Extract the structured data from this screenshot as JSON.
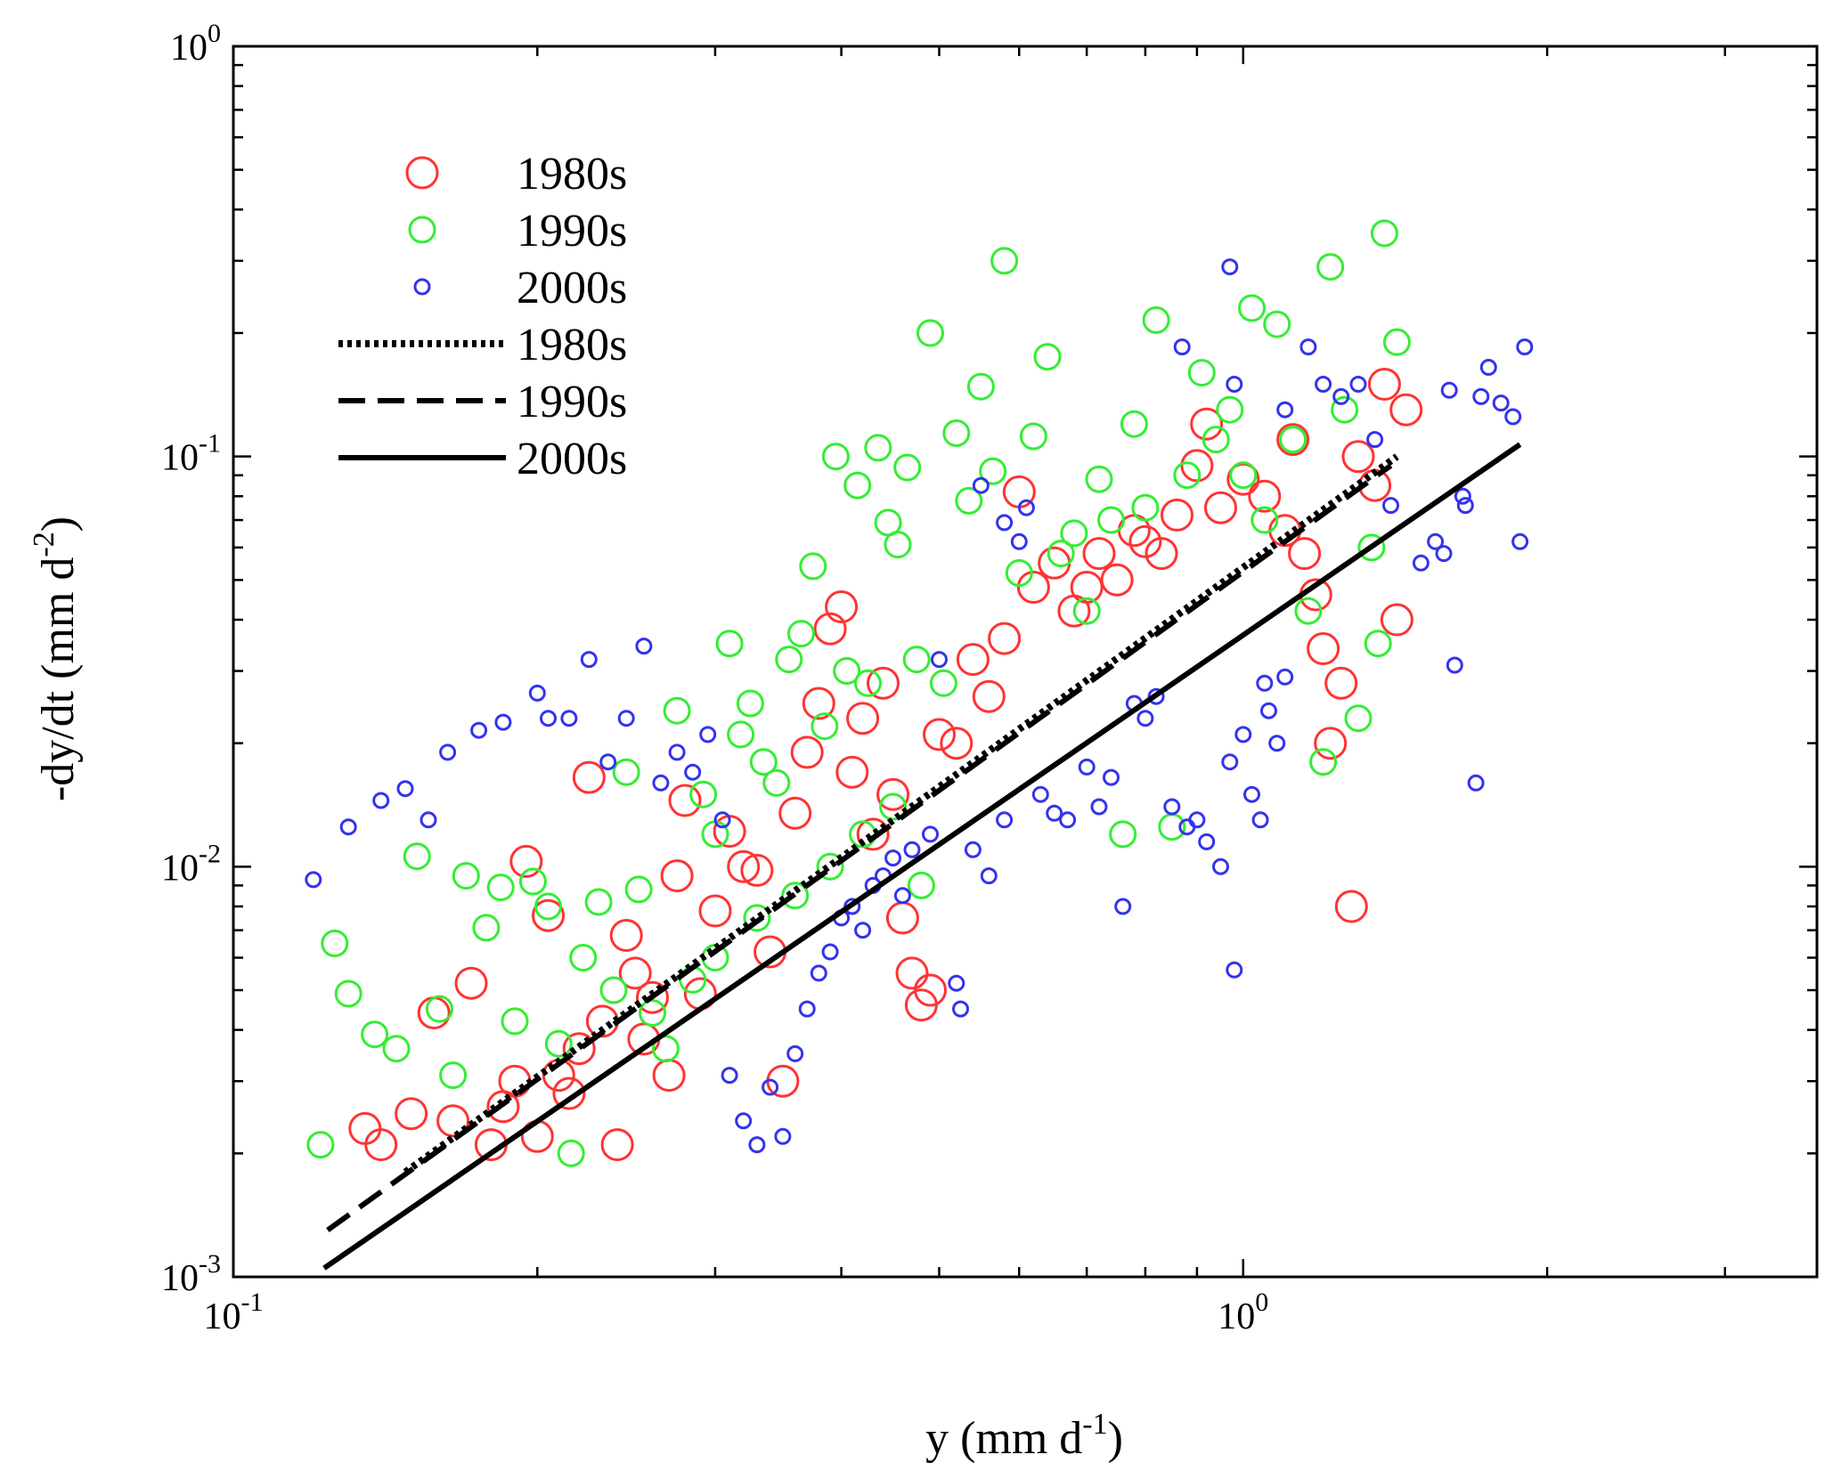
{
  "chart_data": {
    "type": "scatter",
    "title": "",
    "xlabel": "y (mm d",
    "xlabel_sup": "-1",
    "xlabel_end": ")",
    "ylabel": "-dy/dt (mm d",
    "ylabel_sup": "-2",
    "ylabel_end": ")",
    "xscale": "log",
    "yscale": "log",
    "xlim": [
      0.1,
      3.7
    ],
    "ylim": [
      0.001,
      1
    ],
    "grid": false,
    "legend_position": "top-left",
    "x_ticks": [
      {
        "base": "10",
        "exp": "-1",
        "value": 0.1
      },
      {
        "base": "10",
        "exp": "0",
        "value": 1
      }
    ],
    "y_ticks": [
      {
        "base": "10",
        "exp": "-3",
        "value": 0.001
      },
      {
        "base": "10",
        "exp": "-2",
        "value": 0.01
      },
      {
        "base": "10",
        "exp": "-1",
        "value": 0.1
      },
      {
        "base": "10",
        "exp": "0",
        "value": 1
      }
    ],
    "series": [
      {
        "name": "1980s",
        "kind": "scatter",
        "marker": "open-circle",
        "marker_size": "large",
        "color": "#ff3333",
        "points": [
          [
            0.135,
            0.0023
          ],
          [
            0.14,
            0.0021
          ],
          [
            0.15,
            0.0025
          ],
          [
            0.158,
            0.0044
          ],
          [
            0.165,
            0.0024
          ],
          [
            0.172,
            0.0052
          ],
          [
            0.18,
            0.0021
          ],
          [
            0.185,
            0.0026
          ],
          [
            0.19,
            0.003
          ],
          [
            0.195,
            0.0103
          ],
          [
            0.2,
            0.0022
          ],
          [
            0.205,
            0.0076
          ],
          [
            0.21,
            0.0031
          ],
          [
            0.215,
            0.0028
          ],
          [
            0.22,
            0.0036
          ],
          [
            0.225,
            0.0165
          ],
          [
            0.232,
            0.0042
          ],
          [
            0.24,
            0.0021
          ],
          [
            0.245,
            0.0068
          ],
          [
            0.25,
            0.0055
          ],
          [
            0.255,
            0.0038
          ],
          [
            0.26,
            0.0048
          ],
          [
            0.27,
            0.0031
          ],
          [
            0.275,
            0.0095
          ],
          [
            0.28,
            0.0145
          ],
          [
            0.29,
            0.0049
          ],
          [
            0.3,
            0.0078
          ],
          [
            0.31,
            0.0122
          ],
          [
            0.32,
            0.01
          ],
          [
            0.33,
            0.0098
          ],
          [
            0.34,
            0.0062
          ],
          [
            0.35,
            0.003
          ],
          [
            0.36,
            0.0135
          ],
          [
            0.37,
            0.019
          ],
          [
            0.38,
            0.025
          ],
          [
            0.39,
            0.038
          ],
          [
            0.4,
            0.043
          ],
          [
            0.41,
            0.017
          ],
          [
            0.42,
            0.023
          ],
          [
            0.43,
            0.012
          ],
          [
            0.44,
            0.028
          ],
          [
            0.45,
            0.015
          ],
          [
            0.46,
            0.0075
          ],
          [
            0.47,
            0.0055
          ],
          [
            0.48,
            0.0046
          ],
          [
            0.49,
            0.005
          ],
          [
            0.5,
            0.021
          ],
          [
            0.52,
            0.02
          ],
          [
            0.54,
            0.032
          ],
          [
            0.56,
            0.026
          ],
          [
            0.58,
            0.036
          ],
          [
            0.6,
            0.082
          ],
          [
            0.62,
            0.048
          ],
          [
            0.65,
            0.055
          ],
          [
            0.68,
            0.042
          ],
          [
            0.7,
            0.048
          ],
          [
            0.72,
            0.058
          ],
          [
            0.75,
            0.05
          ],
          [
            0.78,
            0.066
          ],
          [
            0.8,
            0.062
          ],
          [
            0.83,
            0.058
          ],
          [
            0.86,
            0.072
          ],
          [
            0.9,
            0.095
          ],
          [
            0.92,
            0.12
          ],
          [
            0.95,
            0.075
          ],
          [
            1.0,
            0.088
          ],
          [
            1.05,
            0.08
          ],
          [
            1.1,
            0.066
          ],
          [
            1.12,
            0.11
          ],
          [
            1.15,
            0.058
          ],
          [
            1.2,
            0.034
          ],
          [
            1.22,
            0.02
          ],
          [
            1.25,
            0.028
          ],
          [
            1.28,
            0.008
          ],
          [
            1.3,
            0.1
          ],
          [
            1.35,
            0.085
          ],
          [
            1.38,
            0.15
          ],
          [
            1.42,
            0.04
          ],
          [
            1.45,
            0.13
          ],
          [
            1.18,
            0.046
          ]
        ]
      },
      {
        "name": "1990s",
        "kind": "scatter",
        "marker": "open-circle",
        "marker_size": "medium",
        "color": "#33ee33",
        "points": [
          [
            0.122,
            0.0021
          ],
          [
            0.126,
            0.0065
          ],
          [
            0.13,
            0.0049
          ],
          [
            0.138,
            0.0039
          ],
          [
            0.145,
            0.0036
          ],
          [
            0.152,
            0.0106
          ],
          [
            0.16,
            0.0045
          ],
          [
            0.165,
            0.0031
          ],
          [
            0.17,
            0.0095
          ],
          [
            0.178,
            0.0071
          ],
          [
            0.184,
            0.0089
          ],
          [
            0.19,
            0.0042
          ],
          [
            0.198,
            0.0092
          ],
          [
            0.205,
            0.008
          ],
          [
            0.21,
            0.0037
          ],
          [
            0.216,
            0.002
          ],
          [
            0.222,
            0.006
          ],
          [
            0.23,
            0.0082
          ],
          [
            0.238,
            0.005
          ],
          [
            0.245,
            0.017
          ],
          [
            0.252,
            0.0088
          ],
          [
            0.26,
            0.0044
          ],
          [
            0.268,
            0.0036
          ],
          [
            0.275,
            0.024
          ],
          [
            0.285,
            0.0053
          ],
          [
            0.292,
            0.015
          ],
          [
            0.3,
            0.012
          ],
          [
            0.31,
            0.035
          ],
          [
            0.318,
            0.021
          ],
          [
            0.325,
            0.025
          ],
          [
            0.335,
            0.018
          ],
          [
            0.345,
            0.016
          ],
          [
            0.355,
            0.032
          ],
          [
            0.365,
            0.037
          ],
          [
            0.375,
            0.054
          ],
          [
            0.385,
            0.022
          ],
          [
            0.395,
            0.1
          ],
          [
            0.405,
            0.03
          ],
          [
            0.415,
            0.085
          ],
          [
            0.425,
            0.028
          ],
          [
            0.435,
            0.105
          ],
          [
            0.445,
            0.069
          ],
          [
            0.455,
            0.061
          ],
          [
            0.465,
            0.094
          ],
          [
            0.475,
            0.032
          ],
          [
            0.49,
            0.2
          ],
          [
            0.505,
            0.028
          ],
          [
            0.52,
            0.114
          ],
          [
            0.535,
            0.078
          ],
          [
            0.55,
            0.148
          ],
          [
            0.565,
            0.092
          ],
          [
            0.58,
            0.3
          ],
          [
            0.6,
            0.052
          ],
          [
            0.62,
            0.112
          ],
          [
            0.64,
            0.175
          ],
          [
            0.66,
            0.058
          ],
          [
            0.68,
            0.065
          ],
          [
            0.7,
            0.042
          ],
          [
            0.72,
            0.088
          ],
          [
            0.74,
            0.07
          ],
          [
            0.76,
            0.012
          ],
          [
            0.78,
            0.12
          ],
          [
            0.8,
            0.075
          ],
          [
            0.82,
            0.215
          ],
          [
            0.85,
            0.0125
          ],
          [
            0.88,
            0.09
          ],
          [
            0.91,
            0.16
          ],
          [
            0.94,
            0.11
          ],
          [
            0.97,
            0.13
          ],
          [
            1.0,
            0.09
          ],
          [
            1.02,
            0.23
          ],
          [
            1.05,
            0.07
          ],
          [
            1.08,
            0.21
          ],
          [
            1.12,
            0.11
          ],
          [
            1.16,
            0.042
          ],
          [
            1.2,
            0.018
          ],
          [
            1.22,
            0.29
          ],
          [
            1.26,
            0.13
          ],
          [
            1.3,
            0.023
          ],
          [
            1.34,
            0.06
          ],
          [
            1.38,
            0.35
          ],
          [
            1.42,
            0.19
          ],
          [
            1.36,
            0.035
          ],
          [
            0.3,
            0.006
          ],
          [
            0.33,
            0.0075
          ],
          [
            0.36,
            0.0085
          ],
          [
            0.39,
            0.01
          ],
          [
            0.42,
            0.012
          ],
          [
            0.45,
            0.014
          ],
          [
            0.48,
            0.009
          ]
        ]
      },
      {
        "name": "2000s",
        "kind": "scatter",
        "marker": "open-circle",
        "marker_size": "small",
        "color": "#3333ee",
        "points": [
          [
            0.12,
            0.0093
          ],
          [
            0.13,
            0.0125
          ],
          [
            0.14,
            0.0145
          ],
          [
            0.148,
            0.0155
          ],
          [
            0.156,
            0.013
          ],
          [
            0.163,
            0.019
          ],
          [
            0.175,
            0.0215
          ],
          [
            0.185,
            0.0225
          ],
          [
            0.2,
            0.0265
          ],
          [
            0.205,
            0.023
          ],
          [
            0.215,
            0.023
          ],
          [
            0.225,
            0.032
          ],
          [
            0.235,
            0.018
          ],
          [
            0.245,
            0.023
          ],
          [
            0.255,
            0.0345
          ],
          [
            0.265,
            0.016
          ],
          [
            0.275,
            0.019
          ],
          [
            0.285,
            0.017
          ],
          [
            0.295,
            0.021
          ],
          [
            0.305,
            0.013
          ],
          [
            0.31,
            0.0031
          ],
          [
            0.32,
            0.0024
          ],
          [
            0.33,
            0.0021
          ],
          [
            0.34,
            0.0029
          ],
          [
            0.35,
            0.0022
          ],
          [
            0.36,
            0.0035
          ],
          [
            0.37,
            0.0045
          ],
          [
            0.38,
            0.0055
          ],
          [
            0.39,
            0.0062
          ],
          [
            0.4,
            0.0075
          ],
          [
            0.41,
            0.008
          ],
          [
            0.42,
            0.007
          ],
          [
            0.43,
            0.009
          ],
          [
            0.44,
            0.0095
          ],
          [
            0.45,
            0.0105
          ],
          [
            0.46,
            0.0085
          ],
          [
            0.47,
            0.011
          ],
          [
            0.49,
            0.012
          ],
          [
            0.5,
            0.032
          ],
          [
            0.52,
            0.0052
          ],
          [
            0.525,
            0.0045
          ],
          [
            0.54,
            0.011
          ],
          [
            0.56,
            0.0095
          ],
          [
            0.58,
            0.013
          ],
          [
            0.6,
            0.062
          ],
          [
            0.61,
            0.075
          ],
          [
            0.63,
            0.015
          ],
          [
            0.65,
            0.0135
          ],
          [
            0.67,
            0.013
          ],
          [
            0.7,
            0.0175
          ],
          [
            0.72,
            0.014
          ],
          [
            0.74,
            0.0165
          ],
          [
            0.76,
            0.008
          ],
          [
            0.78,
            0.025
          ],
          [
            0.8,
            0.023
          ],
          [
            0.82,
            0.026
          ],
          [
            0.85,
            0.014
          ],
          [
            0.88,
            0.0125
          ],
          [
            0.9,
            0.013
          ],
          [
            0.92,
            0.0115
          ],
          [
            0.95,
            0.01
          ],
          [
            0.97,
            0.018
          ],
          [
            0.98,
            0.0056
          ],
          [
            1.0,
            0.021
          ],
          [
            1.02,
            0.015
          ],
          [
            1.04,
            0.013
          ],
          [
            1.06,
            0.024
          ],
          [
            1.08,
            0.02
          ],
          [
            1.1,
            0.029
          ],
          [
            1.05,
            0.028
          ],
          [
            0.87,
            0.185
          ],
          [
            0.97,
            0.29
          ],
          [
            0.98,
            0.15
          ],
          [
            1.1,
            0.13
          ],
          [
            1.16,
            0.185
          ],
          [
            1.2,
            0.15
          ],
          [
            1.25,
            0.14
          ],
          [
            1.3,
            0.15
          ],
          [
            1.35,
            0.11
          ],
          [
            1.4,
            0.076
          ],
          [
            1.5,
            0.055
          ],
          [
            1.55,
            0.062
          ],
          [
            1.6,
            0.145
          ],
          [
            1.62,
            0.031
          ],
          [
            1.65,
            0.08
          ],
          [
            1.7,
            0.016
          ],
          [
            1.72,
            0.14
          ],
          [
            1.75,
            0.165
          ],
          [
            1.8,
            0.135
          ],
          [
            1.85,
            0.125
          ],
          [
            1.9,
            0.185
          ],
          [
            1.88,
            0.062
          ],
          [
            1.58,
            0.058
          ],
          [
            1.66,
            0.076
          ],
          [
            0.55,
            0.085
          ],
          [
            0.58,
            0.069
          ]
        ]
      },
      {
        "name": "1980s",
        "kind": "fit",
        "dash": "dotted",
        "x": [
          0.148,
          1.42
        ],
        "y": [
          0.0018,
          0.1
        ]
      },
      {
        "name": "1990s",
        "kind": "fit",
        "dash": "dashed",
        "x": [
          0.124,
          1.4
        ],
        "y": [
          0.0013,
          0.095
        ]
      },
      {
        "name": "2000s",
        "kind": "fit",
        "dash": "solid",
        "x": [
          0.123,
          1.88
        ],
        "y": [
          0.00105,
          0.107
        ]
      }
    ]
  }
}
